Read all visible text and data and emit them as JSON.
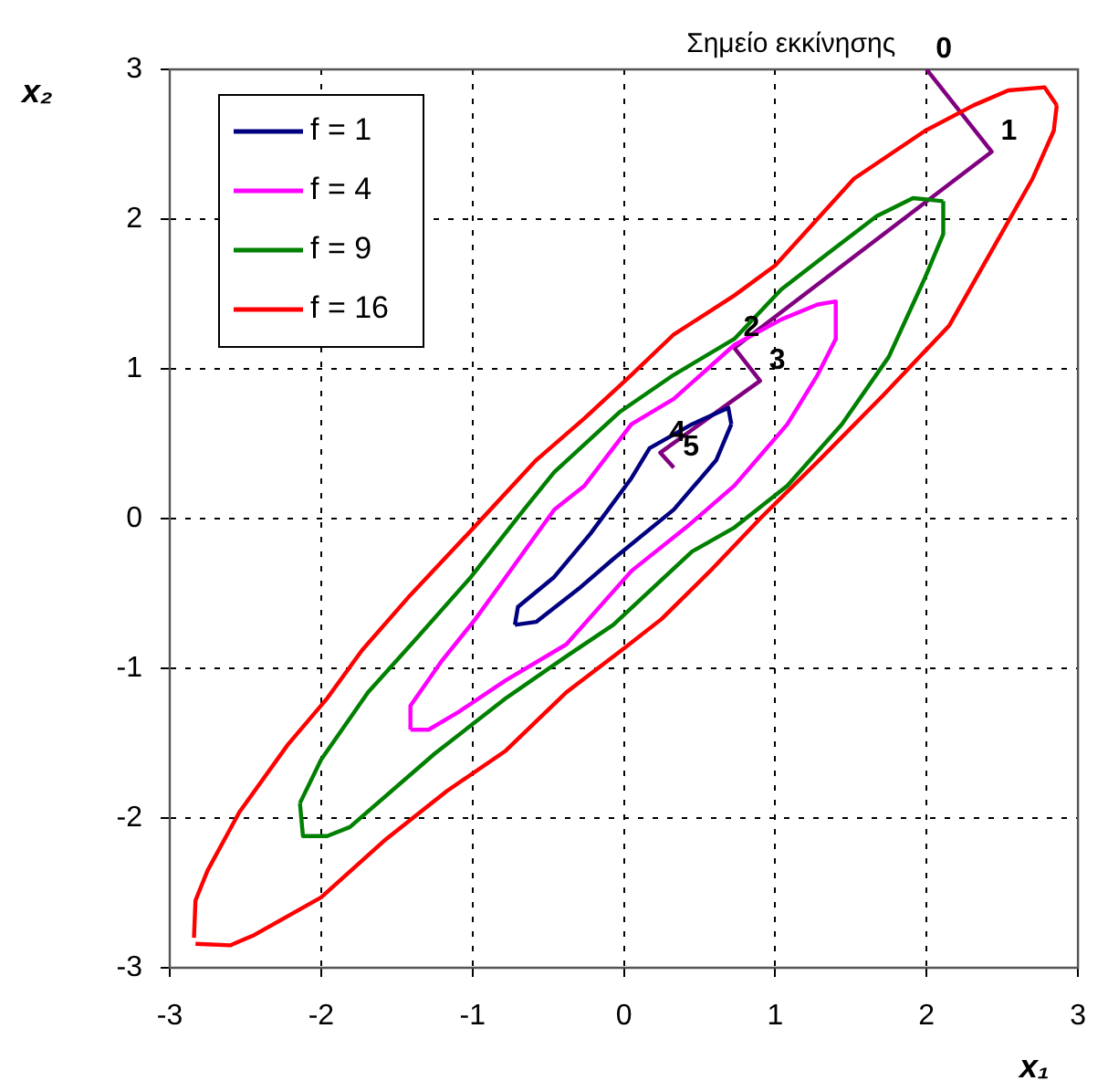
{
  "chart_data": {
    "type": "line",
    "xlabel": "x₁",
    "ylabel": "x₂",
    "xlim": [
      -3,
      3
    ],
    "ylim": [
      -3,
      3
    ],
    "xticks": [
      -3,
      -2,
      -1,
      0,
      1,
      2,
      3
    ],
    "yticks": [
      -3,
      -2,
      -1,
      0,
      1,
      2,
      3
    ],
    "grid": true,
    "legend": "top left",
    "marker": "none",
    "line_style": "solid",
    "annotations": [
      "Σημείο εκκίνησης",
      {
        "text": "0",
        "x": 2,
        "y": 3
      },
      {
        "text": "1",
        "x": 2.43,
        "y": 2.45
      },
      {
        "text": "2",
        "x": 0.73,
        "y": 1.14
      },
      {
        "text": "3",
        "x": 0.9,
        "y": 0.92
      },
      {
        "text": "4",
        "x": 0.24,
        "y": 0.44
      },
      {
        "text": "5",
        "x": 0.33,
        "y": 0.34
      }
    ],
    "series": [
      {
        "name": "f = 1",
        "color": "#000080",
        "x": [
          -0.72,
          -0.7,
          -0.46,
          -0.22,
          0.05,
          0.17,
          0.45,
          0.69,
          0.71
        ],
        "values": [
          -0.71,
          -0.59,
          -0.39,
          -0.1,
          0.27,
          0.47,
          0.63,
          0.74,
          0.63
        ]
      },
      {
        "color": "#000080",
        "x": [
          -0.72,
          -0.58,
          -0.3,
          -0.07,
          0.33,
          0.61,
          0.71
        ],
        "values": [
          -0.71,
          -0.69,
          -0.47,
          -0.27,
          0.06,
          0.39,
          0.63
        ]
      },
      {
        "name": "f = 4",
        "color": "#ff00ff",
        "x": [
          -1.41,
          -1.41,
          -1.21,
          -0.98,
          -0.78,
          -0.46,
          -0.26,
          0.05,
          0.33,
          0.73,
          1.04,
          1.28,
          1.4,
          1.4
        ],
        "values": [
          -1.41,
          -1.25,
          -0.96,
          -0.67,
          -0.39,
          0.06,
          0.22,
          0.63,
          0.8,
          1.16,
          1.33,
          1.43,
          1.45,
          1.2
        ]
      },
      {
        "color": "#ff00ff",
        "x": [
          -1.41,
          -1.29,
          -1.09,
          -0.78,
          -0.38,
          0.05,
          0.41,
          0.73,
          1.08,
          1.28,
          1.4
        ],
        "values": [
          -1.41,
          -1.41,
          -1.29,
          -1.08,
          -0.84,
          -0.35,
          -0.06,
          0.22,
          0.63,
          0.96,
          1.2
        ]
      },
      {
        "name": "f = 9",
        "color": "#008000",
        "x": [
          -2.14,
          -2.0,
          -1.69,
          -1.37,
          -1.01,
          -0.66,
          -0.46,
          -0.03,
          0.33,
          0.73,
          1.04,
          1.36,
          1.67,
          1.91,
          2.11
        ],
        "values": [
          -1.9,
          -1.61,
          -1.16,
          -0.8,
          -0.39,
          0.06,
          0.31,
          0.71,
          0.96,
          1.2,
          1.53,
          1.78,
          2.02,
          2.14,
          2.12
        ]
      },
      {
        "color": "#008000",
        "x": [
          -2.14,
          -2.12,
          -1.96,
          -1.81,
          -1.25,
          -0.78,
          -0.38,
          -0.07,
          0.45,
          0.73,
          1.08,
          1.44,
          1.75,
          1.99,
          2.11,
          2.11
        ],
        "values": [
          -1.9,
          -2.12,
          -2.12,
          -2.06,
          -1.57,
          -1.2,
          -0.92,
          -0.71,
          -0.22,
          -0.06,
          0.22,
          0.63,
          1.08,
          1.61,
          1.9,
          2.12
        ]
      },
      {
        "name": "f = 16",
        "color": "#ff0000",
        "x": [
          -2.84,
          -2.83,
          -2.75,
          -2.54,
          -2.22,
          -1.96,
          -1.73,
          -1.41,
          -1.01,
          -0.58,
          -0.26,
          0.05,
          0.33,
          0.73,
          1.0,
          1.52,
          1.99,
          2.31,
          2.54,
          2.78,
          2.86
        ],
        "values": [
          -2.8,
          -2.55,
          -2.35,
          -1.96,
          -1.51,
          -1.2,
          -0.88,
          -0.51,
          -0.08,
          0.39,
          0.67,
          0.96,
          1.23,
          1.49,
          1.69,
          2.27,
          2.59,
          2.76,
          2.86,
          2.88,
          2.76
        ]
      },
      {
        "color": "#ff0000",
        "x": [
          -2.83,
          -2.6,
          -2.44,
          -2.0,
          -1.57,
          -1.17,
          -0.78,
          -0.38,
          0.01,
          0.25,
          0.57,
          0.9,
          1.3,
          1.71,
          2.15,
          2.47,
          2.7,
          2.84,
          2.86
        ],
        "values": [
          -2.84,
          -2.85,
          -2.78,
          -2.53,
          -2.14,
          -1.82,
          -1.55,
          -1.16,
          -0.86,
          -0.67,
          -0.35,
          0,
          0.4,
          0.82,
          1.29,
          1.86,
          2.27,
          2.59,
          2.76
        ]
      },
      {
        "color": "#800080",
        "x": [
          2,
          2.43,
          0.73,
          0.9,
          0.24,
          0.33
        ],
        "values": [
          3,
          2.45,
          1.14,
          0.92,
          0.44,
          0.34
        ]
      }
    ]
  }
}
